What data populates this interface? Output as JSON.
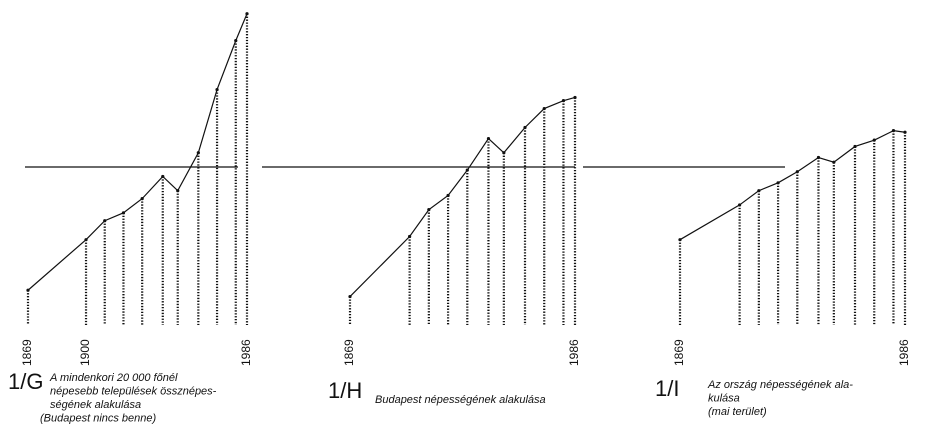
{
  "chart_data": [
    {
      "type": "line",
      "label": "1/G",
      "caption": [
        "A mindenkori 20 000 főnél",
        "népesebb települések össznépes-",
        "ségének alakulása",
        "(Budapest nincs benne)"
      ],
      "x": [
        1869,
        1900,
        1910,
        1920,
        1930,
        1941,
        1949,
        1960,
        1970,
        1980,
        1986
      ],
      "values": [
        22,
        54,
        66,
        71,
        80,
        94,
        85,
        109,
        149,
        180,
        197
      ],
      "xticks": [
        1869,
        1900,
        1986
      ],
      "xlim": [
        1869,
        1986
      ],
      "ylim": [
        0,
        200
      ],
      "reference_line": 100,
      "color": "#111111"
    },
    {
      "type": "line",
      "label": "1/H",
      "caption": [
        "Budapest népességének alakulása"
      ],
      "x": [
        1869,
        1900,
        1910,
        1920,
        1930,
        1941,
        1949,
        1960,
        1970,
        1980,
        1986
      ],
      "values": [
        18,
        56,
        73,
        82,
        98,
        118,
        109,
        125,
        137,
        142,
        144
      ],
      "xticks": [
        1869,
        1986
      ],
      "xlim": [
        1869,
        1986
      ],
      "ylim": [
        0,
        200
      ],
      "reference_line": 100,
      "color": "#111111"
    },
    {
      "type": "line",
      "label": "1/I",
      "caption": [
        "Az ország népességének ala-",
        "kulása",
        "(mai terület)"
      ],
      "x": [
        1869,
        1900,
        1910,
        1920,
        1930,
        1941,
        1949,
        1960,
        1970,
        1980,
        1986
      ],
      "values": [
        54,
        76,
        85,
        90,
        97,
        106,
        103,
        113,
        117,
        123,
        122
      ],
      "xticks": [
        1869,
        1986
      ],
      "xlim": [
        1869,
        1986
      ],
      "ylim": [
        0,
        200
      ],
      "reference_line": 100,
      "color": "#111111"
    }
  ]
}
